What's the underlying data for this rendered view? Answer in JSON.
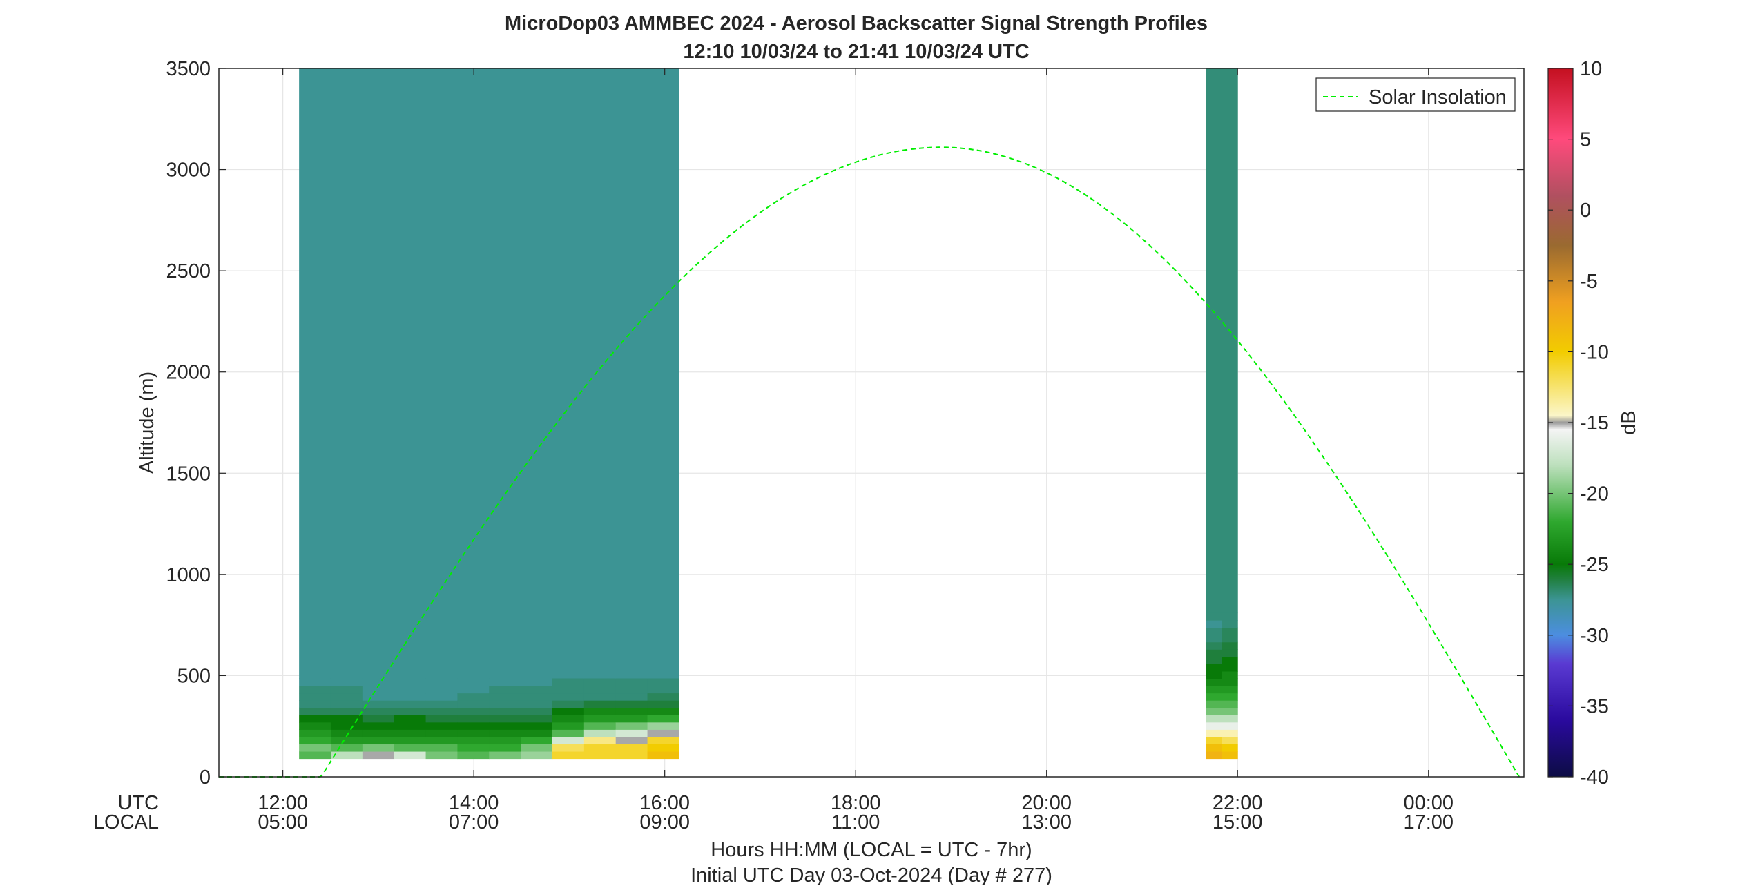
{
  "chart_data": {
    "type": "heatmap",
    "title": "MicroDop03 AMMBEC 2024 - Aerosol Backscatter Signal Strength Profiles",
    "subtitle": "12:10 10/03/24 to 21:41 10/03/24  UTC",
    "ylabel": "Altitude (m)",
    "xlabel": "Hours HH:MM  (LOCAL = UTC - 7hr)",
    "xlabel2": "Initial UTC Day 03-Oct-2024 (Day # 277)",
    "x_row_labels": [
      "UTC",
      "LOCAL"
    ],
    "xlim_hours": [
      11.33,
      25.0
    ],
    "ylim": [
      0,
      3500
    ],
    "y_ticks": [
      0,
      500,
      1000,
      1500,
      2000,
      2500,
      3000,
      3500
    ],
    "x_ticks": [
      {
        "hour": 12,
        "utc": "12:00",
        "local": "05:00"
      },
      {
        "hour": 14,
        "utc": "14:00",
        "local": "07:00"
      },
      {
        "hour": 16,
        "utc": "16:00",
        "local": "09:00"
      },
      {
        "hour": 18,
        "utc": "18:00",
        "local": "11:00"
      },
      {
        "hour": 20,
        "utc": "20:00",
        "local": "13:00"
      },
      {
        "hour": 22,
        "utc": "22:00",
        "local": "15:00"
      },
      {
        "hour": 24,
        "utc": "00:00",
        "local": "17:00"
      }
    ],
    "grid": true,
    "colorbar": {
      "label": "dB",
      "range": [
        -40,
        10
      ],
      "ticks": [
        "10",
        "5",
        "0",
        "-5",
        "-10",
        "-15",
        "-20",
        "-25",
        "-30",
        "-35",
        "-40"
      ],
      "tick_values": [
        10,
        5,
        0,
        -5,
        -10,
        -15,
        -20,
        -25,
        -30,
        -35,
        -40
      ]
    },
    "legend": {
      "placement": "top-right",
      "entries": [
        "Solar Insolation"
      ]
    },
    "solar_insolation_curve": {
      "color": "#00ee00",
      "rise_hour": 12.4,
      "peak_hour": 18.9,
      "peak_altitude": 3110,
      "end_hour": 24.95
    },
    "blocks": [
      {
        "t0": 12.17,
        "t1": 16.15,
        "background_db": -29,
        "profiles": [
          {
            "h": 12.17,
            "db": [
              -21,
              -20,
              -22,
              -23,
              -24,
              -25,
              -27,
              -28,
              -28,
              -28,
              -29
            ]
          },
          {
            "h": 12.5,
            "db": [
              -18,
              -21,
              -23,
              -24,
              -25,
              -25,
              -27,
              -28,
              -28,
              -28,
              -29
            ]
          },
          {
            "h": 12.83,
            "db": [
              -15,
              -20,
              -23,
              -24,
              -25,
              -26,
              -27,
              -28,
              -29,
              -29,
              -29
            ]
          },
          {
            "h": 13.17,
            "db": [
              -17,
              -21,
              -23,
              -24,
              -25,
              -25,
              -27,
              -28,
              -29,
              -29,
              -29
            ]
          },
          {
            "h": 13.5,
            "db": [
              -20,
              -21,
              -23,
              -24,
              -25,
              -26,
              -27,
              -28,
              -29,
              -29,
              -29
            ]
          },
          {
            "h": 13.83,
            "db": [
              -21,
              -22,
              -23,
              -24,
              -25,
              -26,
              -27,
              -28,
              -28,
              -29,
              -29
            ]
          },
          {
            "h": 14.17,
            "db": [
              -20,
              -22,
              -23,
              -24,
              -25,
              -26,
              -27,
              -28,
              -28,
              -28,
              -29
            ]
          },
          {
            "h": 14.5,
            "db": [
              -19,
              -20,
              -22,
              -24,
              -25,
              -26,
              -27,
              -28,
              -28,
              -28,
              -29
            ]
          },
          {
            "h": 14.83,
            "db": [
              -11,
              -12,
              -17,
              -21,
              -23,
              -24,
              -25,
              -27,
              -28,
              -28,
              -28
            ]
          },
          {
            "h": 15.17,
            "db": [
              -11,
              -11,
              -13,
              -18,
              -21,
              -23,
              -24,
              -26,
              -28,
              -28,
              -28
            ]
          },
          {
            "h": 15.5,
            "db": [
              -11,
              -11,
              -15,
              -17,
              -20,
              -23,
              -24,
              -26,
              -28,
              -28,
              -28
            ]
          },
          {
            "h": 15.83,
            "db": [
              -9,
              -10,
              -11,
              -15,
              -19,
              -22,
              -24,
              -26,
              -27,
              -28,
              -28
            ]
          }
        ]
      },
      {
        "t0": 21.67,
        "t1": 22.0,
        "background_db": -28,
        "profiles": [
          {
            "h": 21.67,
            "db": [
              -8,
              -9,
              -11,
              -14,
              -16,
              -18,
              -20,
              -21,
              -22,
              -23,
              -24,
              -25,
              -25,
              -26,
              -26,
              -27,
              -28,
              -28,
              -29,
              -28
            ]
          },
          {
            "h": 21.84,
            "db": [
              -9,
              -10,
              -12,
              -14,
              -16,
              -18,
              -20,
              -21,
              -22,
              -23,
              -24,
              -24,
              -25,
              -25,
              -26,
              -26,
              -27,
              -27,
              -28,
              -28
            ]
          }
        ]
      }
    ]
  }
}
